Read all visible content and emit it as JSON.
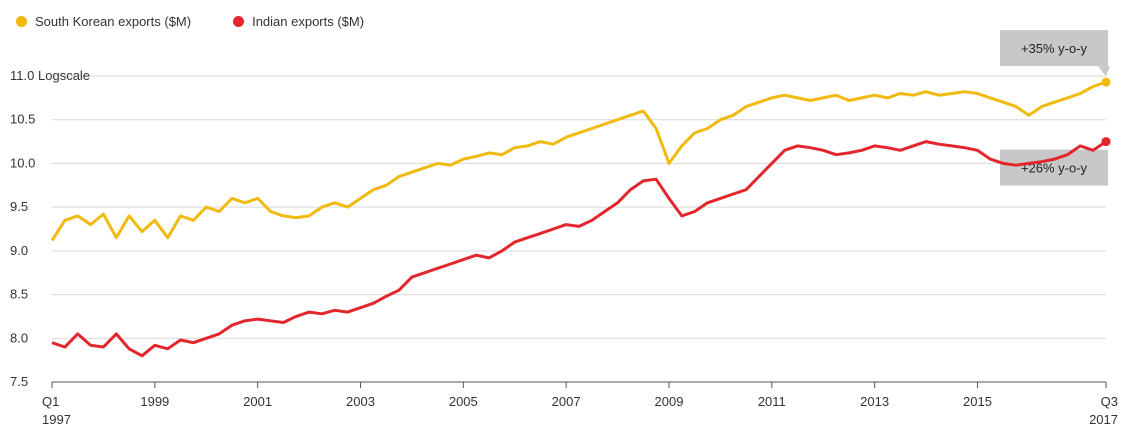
{
  "chart_data": {
    "type": "line",
    "title": "",
    "xlabel": "",
    "ylabel": "",
    "scale_note": "Logscale",
    "y_scale": "log",
    "grid": "horizontal",
    "legend_position": "top-left",
    "ylim": [
      7.5,
      11.0
    ],
    "y_ticks": [
      "7.5",
      "8.0",
      "8.5",
      "9.0",
      "9.5",
      "10.0",
      "10.5",
      "11.0"
    ],
    "x_range": [
      1997.0,
      2017.5
    ],
    "x_ticks": [
      {
        "value": 1997.0,
        "label": "Q1",
        "sublabel": "1997"
      },
      {
        "value": 1999.0,
        "label": "1999",
        "sublabel": ""
      },
      {
        "value": 2001.0,
        "label": "2001",
        "sublabel": ""
      },
      {
        "value": 2003.0,
        "label": "2003",
        "sublabel": ""
      },
      {
        "value": 2005.0,
        "label": "2005",
        "sublabel": ""
      },
      {
        "value": 2007.0,
        "label": "2007",
        "sublabel": ""
      },
      {
        "value": 2009.0,
        "label": "2009",
        "sublabel": ""
      },
      {
        "value": 2011.0,
        "label": "2011",
        "sublabel": ""
      },
      {
        "value": 2013.0,
        "label": "2013",
        "sublabel": ""
      },
      {
        "value": 2015.0,
        "label": "2015",
        "sublabel": ""
      },
      {
        "value": 2017.5,
        "label": "Q3",
        "sublabel": "2017"
      }
    ],
    "series": [
      {
        "name": "South Korean exports ($M)",
        "color": "#f2b90f",
        "x": [
          1997.0,
          1997.25,
          1997.5,
          1997.75,
          1998.0,
          1998.25,
          1998.5,
          1998.75,
          1999.0,
          1999.25,
          1999.5,
          1999.75,
          2000.0,
          2000.25,
          2000.5,
          2000.75,
          2001.0,
          2001.25,
          2001.5,
          2001.75,
          2002.0,
          2002.25,
          2002.5,
          2002.75,
          2003.0,
          2003.25,
          2003.5,
          2003.75,
          2004.0,
          2004.25,
          2004.5,
          2004.75,
          2005.0,
          2005.25,
          2005.5,
          2005.75,
          2006.0,
          2006.25,
          2006.5,
          2006.75,
          2007.0,
          2007.25,
          2007.5,
          2007.75,
          2008.0,
          2008.25,
          2008.5,
          2008.75,
          2009.0,
          2009.25,
          2009.5,
          2009.75,
          2010.0,
          2010.25,
          2010.5,
          2010.75,
          2011.0,
          2011.25,
          2011.5,
          2011.75,
          2012.0,
          2012.25,
          2012.5,
          2012.75,
          2013.0,
          2013.25,
          2013.5,
          2013.75,
          2014.0,
          2014.25,
          2014.5,
          2014.75,
          2015.0,
          2015.25,
          2015.5,
          2015.75,
          2016.0,
          2016.25,
          2016.5,
          2016.75,
          2017.0,
          2017.25,
          2017.5
        ],
        "values": [
          9.12,
          9.35,
          9.4,
          9.3,
          9.42,
          9.15,
          9.4,
          9.22,
          9.35,
          9.15,
          9.4,
          9.35,
          9.5,
          9.45,
          9.6,
          9.55,
          9.6,
          9.45,
          9.4,
          9.38,
          9.4,
          9.5,
          9.55,
          9.5,
          9.6,
          9.7,
          9.75,
          9.85,
          9.9,
          9.95,
          10.0,
          9.98,
          10.05,
          10.08,
          10.12,
          10.1,
          10.18,
          10.2,
          10.25,
          10.22,
          10.3,
          10.35,
          10.4,
          10.45,
          10.5,
          10.55,
          10.6,
          10.4,
          10.0,
          10.2,
          10.35,
          10.4,
          10.5,
          10.55,
          10.65,
          10.7,
          10.75,
          10.78,
          10.75,
          10.72,
          10.75,
          10.78,
          10.72,
          10.75,
          10.78,
          10.75,
          10.8,
          10.78,
          10.82,
          10.78,
          10.8,
          10.82,
          10.8,
          10.75,
          10.7,
          10.65,
          10.55,
          10.65,
          10.7,
          10.75,
          10.8,
          10.88,
          10.93
        ]
      },
      {
        "name": "Indian exports ($M)",
        "color": "#e3262b",
        "x": [
          1997.0,
          1997.25,
          1997.5,
          1997.75,
          1998.0,
          1998.25,
          1998.5,
          1998.75,
          1999.0,
          1999.25,
          1999.5,
          1999.75,
          2000.0,
          2000.25,
          2000.5,
          2000.75,
          2001.0,
          2001.25,
          2001.5,
          2001.75,
          2002.0,
          2002.25,
          2002.5,
          2002.75,
          2003.0,
          2003.25,
          2003.5,
          2003.75,
          2004.0,
          2004.25,
          2004.5,
          2004.75,
          2005.0,
          2005.25,
          2005.5,
          2005.75,
          2006.0,
          2006.25,
          2006.5,
          2006.75,
          2007.0,
          2007.25,
          2007.5,
          2007.75,
          2008.0,
          2008.25,
          2008.5,
          2008.75,
          2009.0,
          2009.25,
          2009.5,
          2009.75,
          2010.0,
          2010.25,
          2010.5,
          2010.75,
          2011.0,
          2011.25,
          2011.5,
          2011.75,
          2012.0,
          2012.25,
          2012.5,
          2012.75,
          2013.0,
          2013.25,
          2013.5,
          2013.75,
          2014.0,
          2014.25,
          2014.5,
          2014.75,
          2015.0,
          2015.25,
          2015.5,
          2015.75,
          2016.0,
          2016.25,
          2016.5,
          2016.75,
          2017.0,
          2017.25,
          2017.5
        ],
        "values": [
          7.95,
          7.9,
          8.05,
          7.92,
          7.9,
          8.05,
          7.88,
          7.8,
          7.92,
          7.88,
          7.98,
          7.95,
          8.0,
          8.05,
          8.15,
          8.2,
          8.22,
          8.2,
          8.18,
          8.25,
          8.3,
          8.28,
          8.32,
          8.3,
          8.35,
          8.4,
          8.48,
          8.55,
          8.7,
          8.75,
          8.8,
          8.85,
          8.9,
          8.95,
          8.92,
          9.0,
          9.1,
          9.15,
          9.2,
          9.25,
          9.3,
          9.28,
          9.35,
          9.45,
          9.55,
          9.7,
          9.8,
          9.82,
          9.6,
          9.4,
          9.45,
          9.55,
          9.6,
          9.65,
          9.7,
          9.85,
          10.0,
          10.15,
          10.2,
          10.18,
          10.15,
          10.1,
          10.12,
          10.15,
          10.2,
          10.18,
          10.15,
          10.2,
          10.25,
          10.22,
          10.2,
          10.18,
          10.15,
          10.05,
          10.0,
          9.98,
          10.0,
          10.02,
          10.05,
          10.1,
          10.2,
          10.15,
          10.25
        ]
      }
    ],
    "annotations": [
      {
        "text": "+35% y-o-y",
        "series": 0
      },
      {
        "text": "+26% y-o-y",
        "series": 1
      }
    ]
  }
}
